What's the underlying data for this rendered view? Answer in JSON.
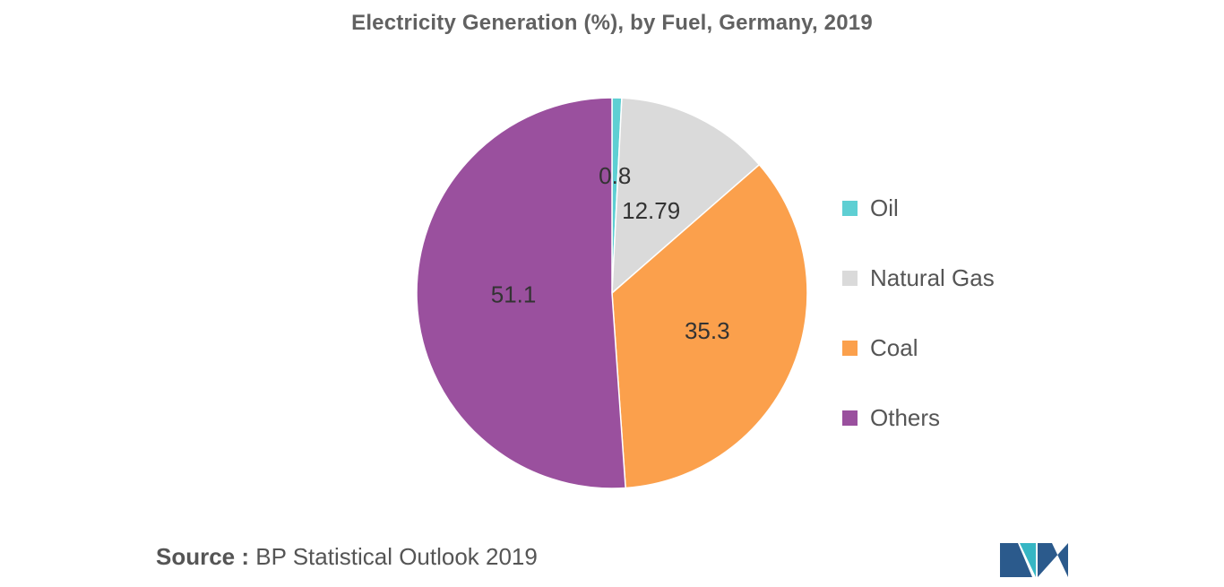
{
  "chart_data": {
    "type": "pie",
    "title": "Electricity Generation (%), by Fuel, Germany, 2019",
    "slices": [
      {
        "label": "Oil",
        "value": 0.8,
        "display": "0.8",
        "color": "#5ecfd3"
      },
      {
        "label": "Natural Gas",
        "value": 12.79,
        "display": "12.79",
        "color": "#dadada"
      },
      {
        "label": "Coal",
        "value": 35.3,
        "display": "35.3",
        "color": "#fba04c"
      },
      {
        "label": "Others",
        "value": 51.1,
        "display": "51.1",
        "color": "#9a509e"
      }
    ],
    "legend_position": "right"
  },
  "source": {
    "prefix": "Source :",
    "text": "BP Statistical Outlook 2019"
  },
  "logo": {
    "colors": [
      "#2b5a8c",
      "#36b6c4"
    ]
  }
}
